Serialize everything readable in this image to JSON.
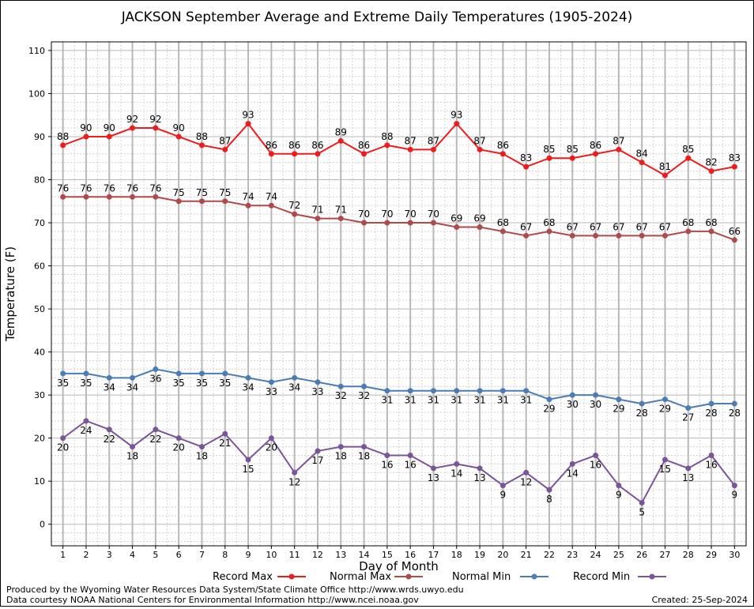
{
  "chart_data": {
    "type": "line",
    "title": "JACKSON September Average and Extreme Daily Temperatures (1905-2024)",
    "xlabel": "Day of Month",
    "ylabel": "Temperature (F)",
    "x": [
      1,
      2,
      3,
      4,
      5,
      6,
      7,
      8,
      9,
      10,
      11,
      12,
      13,
      14,
      15,
      16,
      17,
      18,
      19,
      20,
      21,
      22,
      23,
      24,
      25,
      26,
      27,
      28,
      29,
      30
    ],
    "xlim": [
      0.5,
      30.5
    ],
    "ylim": [
      -5,
      112
    ],
    "yticks": [
      0,
      10,
      20,
      30,
      40,
      50,
      60,
      70,
      80,
      90,
      100,
      110
    ],
    "grid": true,
    "legend_position": "bottom",
    "series": [
      {
        "name": "Record Max",
        "color": "#ee1c1c",
        "label_position": "above",
        "values": [
          88,
          90,
          90,
          92,
          92,
          90,
          88,
          87,
          93,
          86,
          86,
          86,
          89,
          86,
          88,
          87,
          87,
          93,
          87,
          86,
          83,
          85,
          85,
          86,
          87,
          84,
          81,
          85,
          82,
          83
        ]
      },
      {
        "name": "Normal Max",
        "color": "#b04a4a",
        "label_position": "above",
        "values": [
          76,
          76,
          76,
          76,
          76,
          75,
          75,
          75,
          74,
          74,
          72,
          71,
          71,
          70,
          70,
          70,
          70,
          69,
          69,
          68,
          67,
          68,
          67,
          67,
          67,
          67,
          67,
          68,
          68,
          66
        ]
      },
      {
        "name": "Normal Min",
        "color": "#4a7db5",
        "label_position": "below",
        "values": [
          35,
          35,
          34,
          34,
          36,
          35,
          35,
          35,
          34,
          33,
          34,
          33,
          32,
          32,
          31,
          31,
          31,
          31,
          31,
          31,
          31,
          29,
          30,
          30,
          29,
          28,
          29,
          27,
          28,
          28
        ]
      },
      {
        "name": "Record Min",
        "color": "#7b559a",
        "label_position": "below",
        "values": [
          20,
          24,
          22,
          18,
          22,
          20,
          18,
          21,
          15,
          20,
          12,
          17,
          18,
          18,
          16,
          16,
          13,
          14,
          13,
          9,
          12,
          8,
          14,
          16,
          9,
          5,
          15,
          13,
          16,
          9
        ]
      }
    ]
  },
  "footer": {
    "produced_by": "Produced by the Wyoming Water Resources Data System/State Climate Office http://www.wrds.uwyo.edu",
    "courtesy": "Data courtesy NOAA National Centers for Environmental Information http://www.ncei.noaa.gov",
    "created": "Created:  25-Sep-2024"
  }
}
